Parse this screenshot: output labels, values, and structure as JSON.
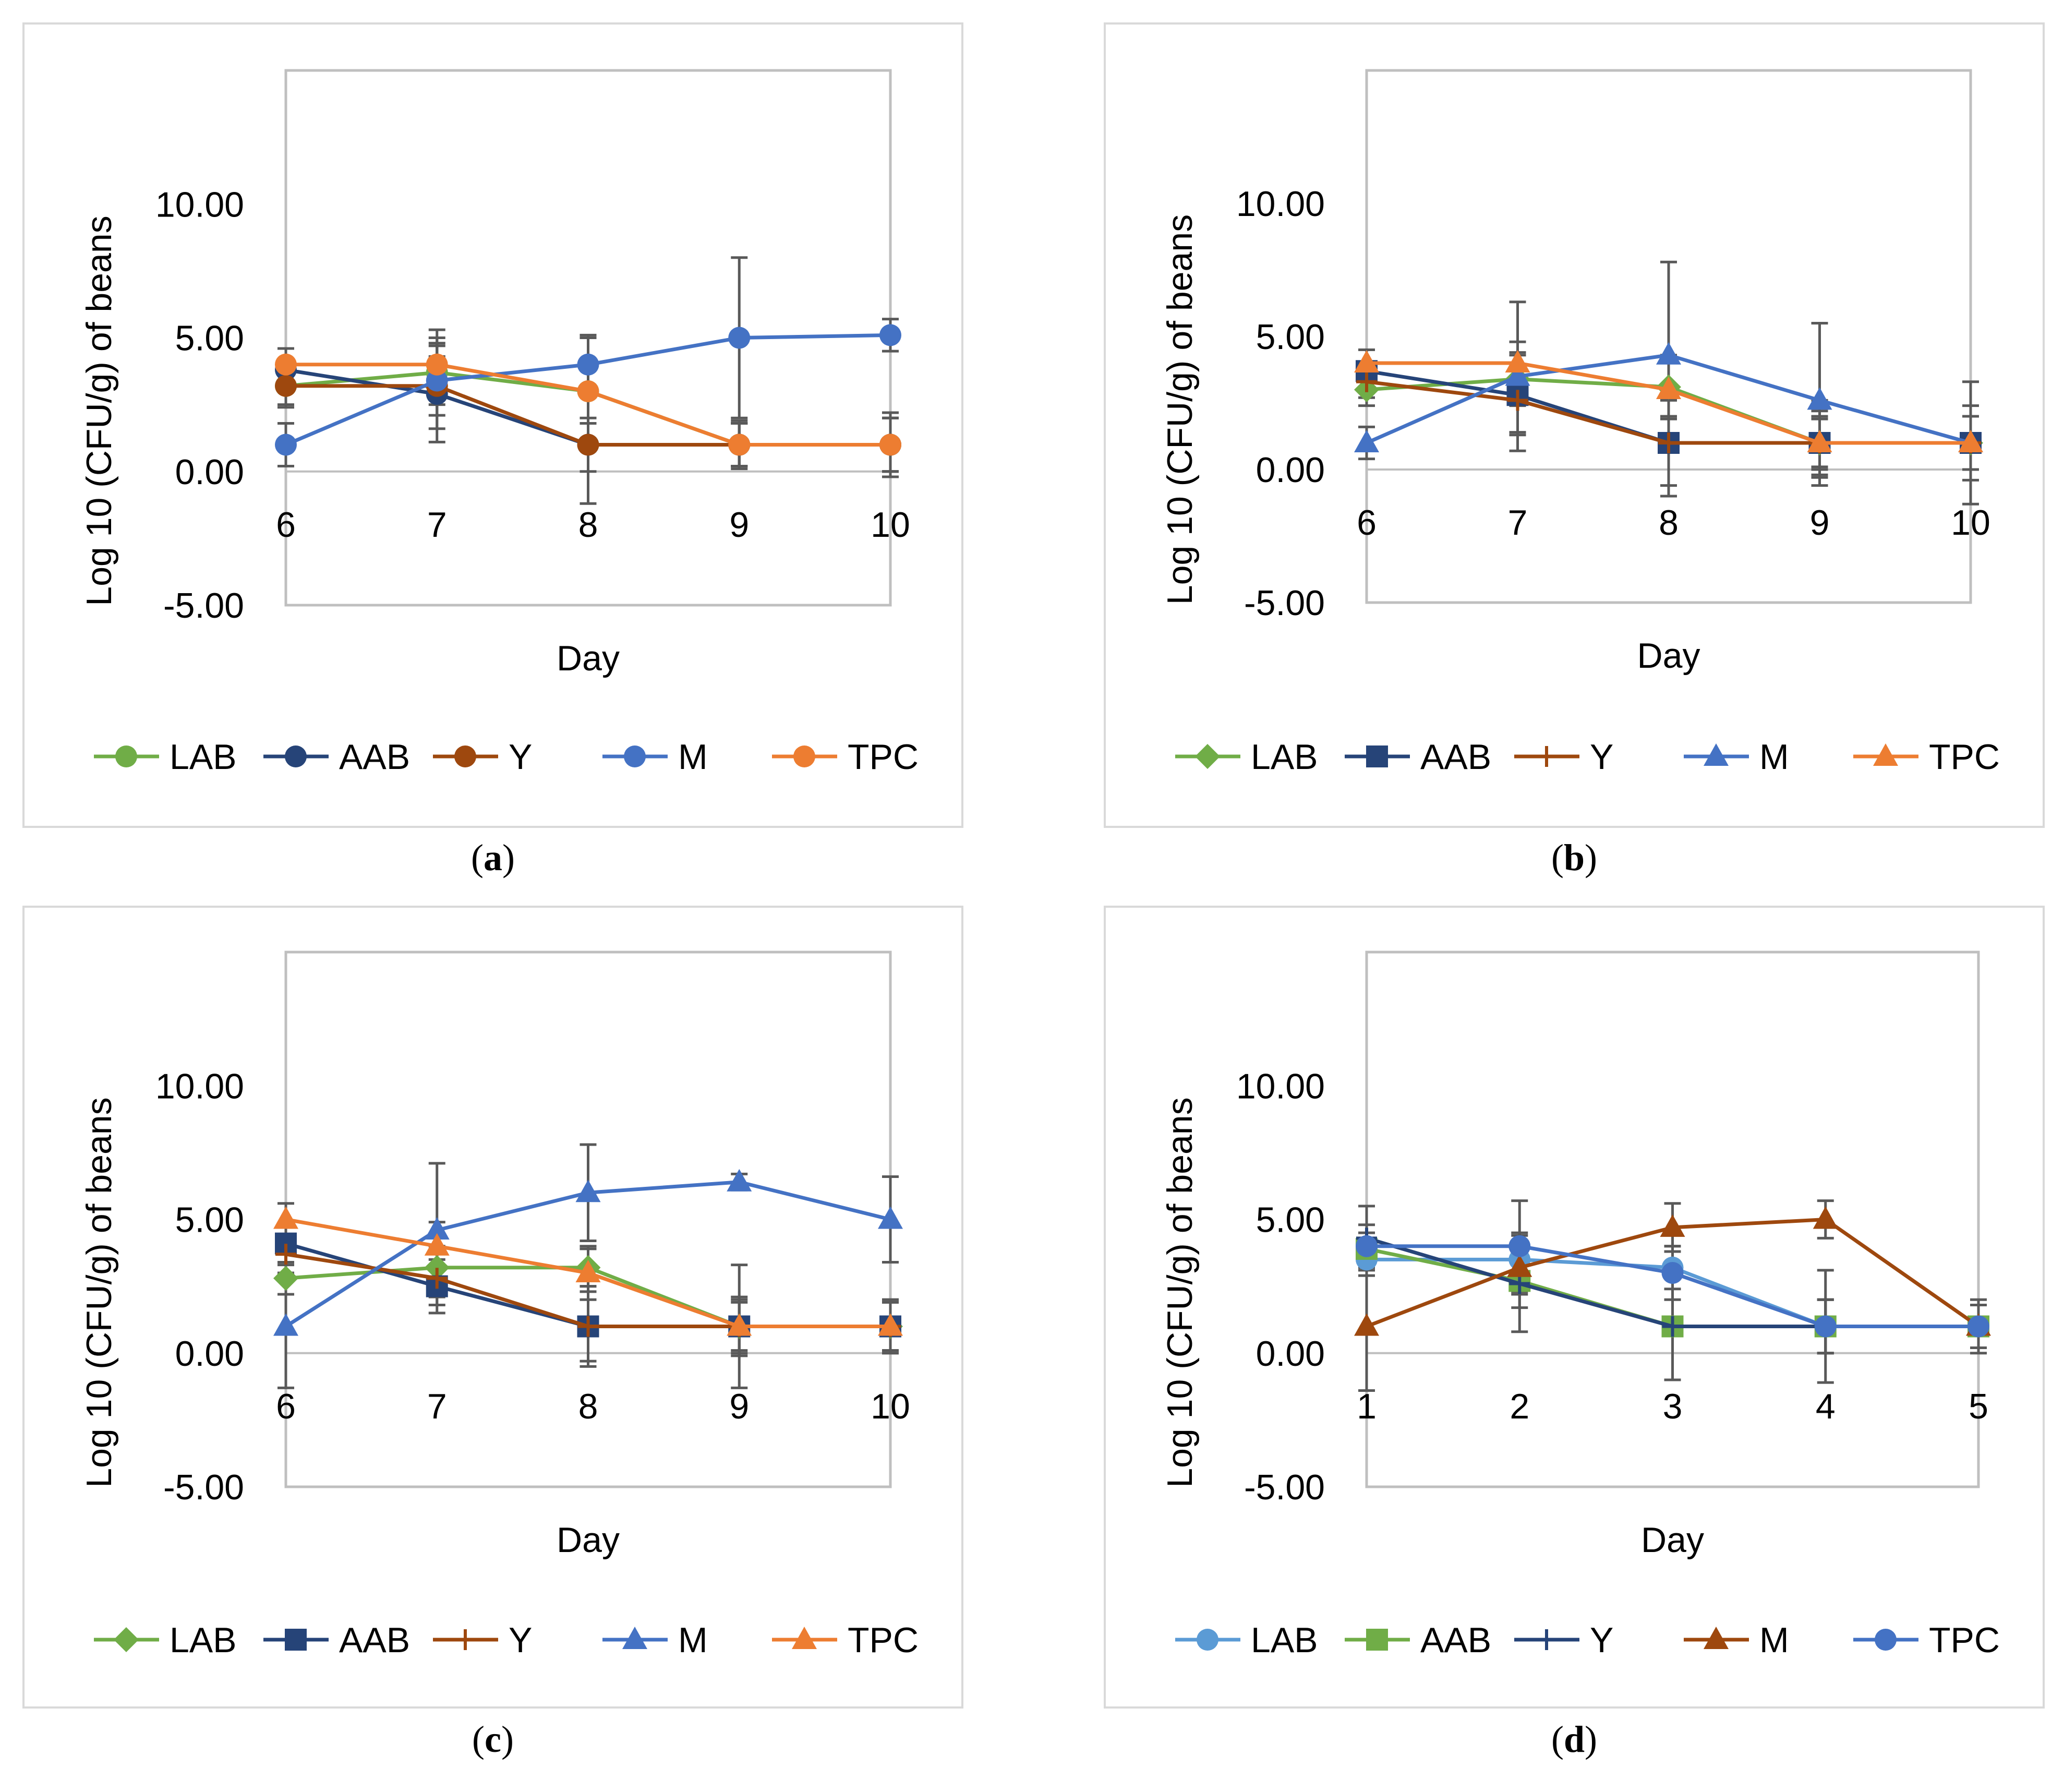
{
  "palette": {
    "green": "#70ad47",
    "navy": "#264478",
    "brown": "#9e480e",
    "blue": "#4472c4",
    "orange": "#ed7d31",
    "lightblue": "#5b9bd5",
    "errorbar": "#595959",
    "axis": "#bfbfbf"
  },
  "chart_data": [
    {
      "type": "line",
      "panel": "a",
      "caption": {
        "open": "(",
        "letter": "a",
        "close": ")"
      },
      "xlabel": "Day",
      "ylabel": "Log 10 (CFU/g) of beans",
      "categories": [
        "6",
        "7",
        "8",
        "9",
        "10"
      ],
      "ylim": [
        -5,
        15
      ],
      "yticks": [
        "-5.00",
        "0.00",
        "5.00",
        "10.00"
      ],
      "legend_position": "bottom",
      "series": [
        {
          "name": "LAB",
          "color": "#70ad47",
          "marker": "circle",
          "values": [
            3.2,
            3.7,
            3.0,
            1.0,
            1.0
          ],
          "errors": [
            0.8,
            1.6,
            2.0,
            0.9,
            1.0
          ]
        },
        {
          "name": "AAB",
          "color": "#264478",
          "marker": "circle",
          "values": [
            3.8,
            2.9,
            1.0,
            1.0,
            1.0
          ],
          "errors": [
            0.8,
            1.8,
            2.2,
            0.8,
            1.0
          ]
        },
        {
          "name": "Y",
          "color": "#9e480e",
          "marker": "circle",
          "values": [
            3.2,
            3.2,
            1.0,
            1.0,
            1.0
          ],
          "errors": [
            0.7,
            1.6,
            1.0,
            0.8,
            1.0
          ]
        },
        {
          "name": "M",
          "color": "#4472c4",
          "marker": "circle",
          "values": [
            1.0,
            3.4,
            4.0,
            5.0,
            5.1
          ],
          "errors": [
            0.8,
            0.9,
            1.1,
            3.0,
            0.6
          ]
        },
        {
          "name": "TPC",
          "color": "#ed7d31",
          "marker": "circle",
          "values": [
            4.0,
            4.0,
            3.0,
            1.0,
            1.0
          ],
          "errors": [
            0.6,
            1.0,
            1.2,
            0.8,
            1.2
          ]
        }
      ]
    },
    {
      "type": "line",
      "panel": "b",
      "caption": {
        "open": "(",
        "letter": "b",
        "close": ")"
      },
      "xlabel": "Day",
      "ylabel": "Log 10 (CFU/g) of beans",
      "categories": [
        "6",
        "7",
        "8",
        "9",
        "10"
      ],
      "ylim": [
        -5,
        15
      ],
      "yticks": [
        "-5.00",
        "0.00",
        "5.00",
        "10.00"
      ],
      "legend_position": "bottom",
      "series": [
        {
          "name": "LAB",
          "color": "#70ad47",
          "marker": "diamond",
          "values": [
            3.0,
            3.4,
            3.1,
            1.0,
            1.0
          ],
          "errors": [
            0.6,
            1.0,
            1.2,
            1.0,
            1.0
          ]
        },
        {
          "name": "AAB",
          "color": "#264478",
          "marker": "square",
          "values": [
            3.7,
            2.8,
            1.0,
            1.0,
            1.0
          ],
          "errors": [
            0.8,
            1.5,
            2.0,
            1.6,
            1.4
          ]
        },
        {
          "name": "Y",
          "color": "#9e480e",
          "marker": "plus",
          "values": [
            3.3,
            2.6,
            1.0,
            1.0,
            1.0
          ],
          "errors": [
            0.6,
            1.2,
            1.6,
            1.2,
            1.0
          ]
        },
        {
          "name": "M",
          "color": "#4472c4",
          "marker": "triangle",
          "values": [
            1.0,
            3.5,
            4.3,
            2.6,
            1.0
          ],
          "errors": [
            0.6,
            2.8,
            3.5,
            2.9,
            2.3
          ]
        },
        {
          "name": "TPC",
          "color": "#ed7d31",
          "marker": "triangle",
          "values": [
            4.0,
            4.0,
            3.0,
            1.0,
            1.0
          ],
          "errors": [
            0.5,
            0.8,
            1.0,
            0.9,
            1.0
          ]
        }
      ]
    },
    {
      "type": "line",
      "panel": "c",
      "caption": {
        "open": "(",
        "letter": "c",
        "close": ")"
      },
      "xlabel": "Day",
      "ylabel": "Log 10 (CFU/g) of beans",
      "categories": [
        "6",
        "7",
        "8",
        "9",
        "10"
      ],
      "ylim": [
        -5,
        15
      ],
      "yticks": [
        "-5.00",
        "0.00",
        "5.00",
        "10.00"
      ],
      "legend_position": "bottom",
      "series": [
        {
          "name": "LAB",
          "color": "#70ad47",
          "marker": "diamond",
          "values": [
            2.8,
            3.2,
            3.2,
            1.0,
            1.0
          ],
          "errors": [
            0.6,
            0.8,
            0.7,
            1.0,
            0.9
          ]
        },
        {
          "name": "AAB",
          "color": "#264478",
          "marker": "square",
          "values": [
            4.1,
            2.5,
            1.0,
            1.0,
            1.0
          ],
          "errors": [
            0.7,
            1.0,
            1.5,
            2.3,
            1.0
          ]
        },
        {
          "name": "Y",
          "color": "#9e480e",
          "marker": "plus",
          "values": [
            3.7,
            2.8,
            1.0,
            1.0,
            1.0
          ],
          "errors": [
            0.7,
            1.0,
            1.3,
            1.1,
            1.0
          ]
        },
        {
          "name": "M",
          "color": "#4472c4",
          "marker": "triangle",
          "values": [
            1.0,
            4.6,
            6.0,
            6.4,
            5.0
          ],
          "errors": [
            2.3,
            2.5,
            1.8,
            0.3,
            1.6
          ]
        },
        {
          "name": "TPC",
          "color": "#ed7d31",
          "marker": "triangle",
          "values": [
            5.0,
            4.0,
            3.0,
            1.0,
            1.0
          ],
          "errors": [
            0.6,
            0.9,
            1.0,
            0.9,
            0.9
          ]
        }
      ]
    },
    {
      "type": "line",
      "panel": "d",
      "caption": {
        "open": "(",
        "letter": "d",
        "close": ")"
      },
      "xlabel": "Day",
      "ylabel": "Log 10 (CFU/g) of beans",
      "categories": [
        "1",
        "2",
        "3",
        "4",
        "5"
      ],
      "ylim": [
        -5,
        15
      ],
      "yticks": [
        "-5.00",
        "0.00",
        "5.00",
        "10.00"
      ],
      "legend_position": "bottom",
      "series": [
        {
          "name": "LAB",
          "color": "#5b9bd5",
          "marker": "circle",
          "values": [
            3.5,
            3.5,
            3.2,
            1.0,
            1.0
          ],
          "errors": [
            0.6,
            1.0,
            0.8,
            1.0,
            0.8
          ]
        },
        {
          "name": "AAB",
          "color": "#70ad47",
          "marker": "square",
          "values": [
            3.9,
            2.7,
            1.0,
            1.0,
            1.0
          ],
          "errors": [
            0.6,
            1.0,
            2.0,
            1.0,
            0.8
          ]
        },
        {
          "name": "Y",
          "color": "#264478",
          "marker": "plus",
          "values": [
            4.3,
            2.6,
            1.0,
            1.0,
            1.0
          ],
          "errors": [
            1.2,
            1.8,
            2.0,
            2.1,
            1.0
          ]
        },
        {
          "name": "M",
          "color": "#9e480e",
          "marker": "triangle",
          "values": [
            1.0,
            3.2,
            4.7,
            5.0,
            1.0
          ],
          "errors": [
            2.4,
            1.0,
            0.9,
            0.7,
            0.8
          ]
        },
        {
          "name": "TPC",
          "color": "#4472c4",
          "marker": "circle",
          "values": [
            4.0,
            4.0,
            3.0,
            1.0,
            1.0
          ],
          "errors": [
            0.8,
            1.7,
            1.0,
            1.0,
            0.8
          ]
        }
      ]
    }
  ]
}
